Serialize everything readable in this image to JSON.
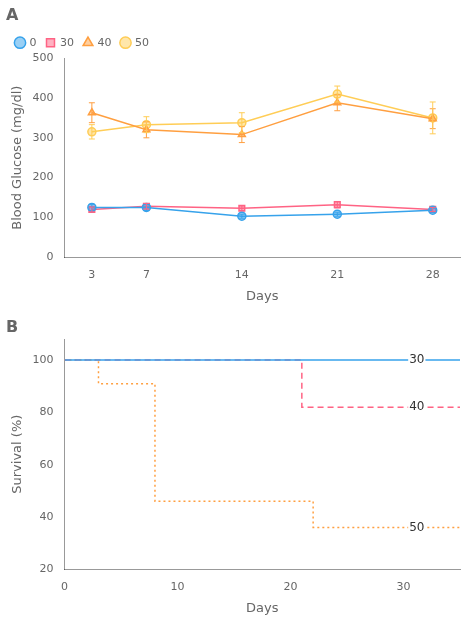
{
  "chart_data": [
    {
      "type": "line",
      "title": "A",
      "x": [
        3,
        7,
        14,
        21,
        28
      ],
      "series": [
        {
          "name": "0",
          "values": [
            125,
            125,
            103,
            108,
            118
          ],
          "errors": [
            8,
            8,
            5,
            5,
            5
          ],
          "marker": "circle"
        },
        {
          "name": "30",
          "values": [
            120,
            128,
            123,
            132,
            120
          ],
          "errors": [
            6,
            7,
            6,
            8,
            5
          ],
          "marker": "square"
        },
        {
          "name": "40",
          "values": [
            363,
            320,
            308,
            388,
            348
          ],
          "errors": [
            25,
            20,
            20,
            20,
            25
          ],
          "marker": "triangle"
        },
        {
          "name": "50",
          "values": [
            315,
            333,
            338,
            410,
            350
          ],
          "errors": [
            18,
            20,
            25,
            20,
            40
          ],
          "marker": "circle"
        }
      ],
      "xlabel": "Days",
      "ylabel": "Blood Glucose (mg/dl)",
      "xlim": [
        1,
        30
      ],
      "xticks": [
        3,
        7,
        14,
        21,
        28
      ],
      "ylim": [
        0,
        500
      ],
      "yticks": [
        0,
        100,
        200,
        300,
        400,
        500
      ],
      "grid": false,
      "legend": "upper left"
    },
    {
      "type": "line",
      "title": "B",
      "series": [
        {
          "name": "30",
          "x": [
            0,
            35
          ],
          "values": [
            100,
            100
          ],
          "line_style": "solid"
        },
        {
          "name": "40",
          "x": [
            0,
            21,
            21,
            35
          ],
          "values": [
            100,
            100,
            82,
            82
          ],
          "line_style": "dashed"
        },
        {
          "name": "50",
          "x": [
            0,
            3,
            3,
            8,
            8,
            22,
            22,
            35
          ],
          "values": [
            100,
            100,
            91,
            91,
            46,
            46,
            36,
            36
          ],
          "line_style": "dotted"
        }
      ],
      "xlabel": "Days",
      "ylabel": "Survival (%)",
      "xlim": [
        0,
        35
      ],
      "xticks": [
        0,
        10,
        20,
        30
      ],
      "ylim": [
        20,
        108
      ],
      "yticks": [
        20,
        40,
        60,
        80,
        100
      ],
      "grid": false,
      "annotations": [
        {
          "text": "30",
          "x": 30.5,
          "y": 100
        },
        {
          "text": "40",
          "x": 30.5,
          "y": 82
        },
        {
          "text": "50",
          "x": 30.5,
          "y": 36
        }
      ]
    }
  ]
}
